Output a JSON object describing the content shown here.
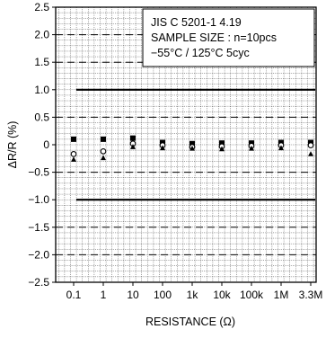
{
  "chart_data": {
    "type": "scatter",
    "title": "",
    "xlabel": "RESISTANCE (Ω)",
    "ylabel": "ΔR/R (%)",
    "categories": [
      "0.1",
      "1",
      "10",
      "100",
      "1k",
      "10k",
      "100k",
      "1M",
      "3.3M"
    ],
    "ylim": [
      -2.5,
      2.5
    ],
    "yticks": [
      "2.5",
      "2.0",
      "1.5",
      "1.0",
      "0.5",
      "0",
      "−0.5",
      "−1.0",
      "−1.5",
      "−2.0",
      "−2.5"
    ],
    "ytick_values": [
      2.5,
      2.0,
      1.5,
      1.0,
      0.5,
      0,
      -0.5,
      -1.0,
      -1.5,
      -2.0,
      -2.5
    ],
    "limit_lines": [
      1.0,
      -1.0
    ],
    "dashed_lines": [
      2.0,
      1.5,
      0.5,
      -0.5,
      -1.5,
      -2.0
    ],
    "annotation": [
      "JIS C 5201-1 4.19",
      "SAMPLE SIZE : n=10pcs",
      "−55°C / 125°C 5cyc"
    ],
    "series": [
      {
        "marker": "square",
        "values": [
          0.1,
          0.1,
          0.12,
          0.04,
          0.02,
          0.03,
          0.03,
          0.04,
          0.04
        ]
      },
      {
        "marker": "circle",
        "values": [
          -0.17,
          -0.12,
          0.02,
          -0.01,
          -0.04,
          -0.03,
          -0.02,
          -0.01,
          -0.01
        ]
      },
      {
        "marker": "triangle",
        "values": [
          -0.27,
          -0.24,
          -0.04,
          -0.06,
          -0.07,
          -0.08,
          -0.07,
          -0.06,
          -0.17
        ]
      }
    ],
    "grid": true
  }
}
